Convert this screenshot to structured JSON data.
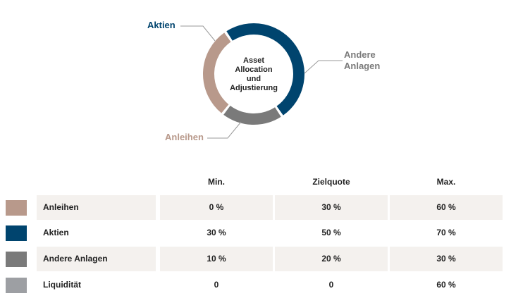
{
  "chart_data": {
    "type": "pie",
    "style": "donut",
    "title": "Asset Allocation und Adjustierung",
    "center_text": [
      "Asset",
      "Allocation",
      "und",
      "Adjustierung"
    ],
    "slices": [
      {
        "label": "Aktien",
        "value": 50,
        "color": "#00446e"
      },
      {
        "label": "Andere Anlagen",
        "value": 20,
        "color": "#7a7a7a"
      },
      {
        "label": "Anleihen",
        "value": 30,
        "color": "#b8998b"
      }
    ]
  },
  "callouts": {
    "aktien": [
      "Aktien"
    ],
    "andere": [
      "Andere",
      "Anlagen"
    ],
    "anleihen": [
      "Anleihen"
    ]
  },
  "table": {
    "headers": {
      "min": "Min.",
      "ziel": "Zielquote",
      "max": "Max."
    },
    "rows": [
      {
        "name": "Anleihen",
        "min": "0 %",
        "ziel": "30 %",
        "max": "60 %",
        "color": "#b8998b",
        "shaded": true
      },
      {
        "name": "Aktien",
        "min": "30 %",
        "ziel": "50 %",
        "max": "70 %",
        "color": "#00446e",
        "shaded": false
      },
      {
        "name": "Andere Anlagen",
        "min": "10 %",
        "ziel": "20 %",
        "max": "30 %",
        "color": "#7a7a7a",
        "shaded": true
      },
      {
        "name": "Liquidität",
        "min": "0",
        "ziel": "0",
        "max": "60 %",
        "color": "#9d9fa3",
        "shaded": false
      }
    ]
  },
  "colors": {
    "aktien_label": "#00446e",
    "andere_label": "#7a7a7a",
    "anleihen_label": "#b8998b",
    "leader": "#9a9a9a",
    "row_shade": "#f4f1ee"
  }
}
